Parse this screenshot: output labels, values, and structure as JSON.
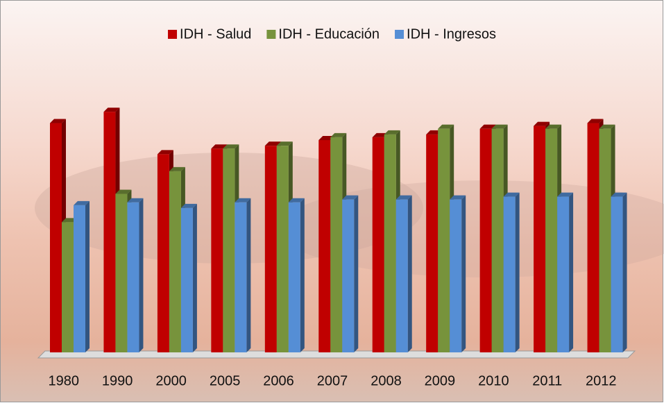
{
  "chart_data": {
    "type": "bar3d",
    "categories": [
      "1980",
      "1990",
      "2000",
      "2005",
      "2006",
      "2007",
      "2008",
      "2009",
      "2010",
      "2011",
      "2012"
    ],
    "series": [
      {
        "name": "IDH - Salud",
        "color": "#c00000",
        "values": [
          0.81,
          0.85,
          0.7,
          0.72,
          0.73,
          0.75,
          0.76,
          0.77,
          0.79,
          0.8,
          0.81
        ]
      },
      {
        "name": "IDH - Educación",
        "color": "#77933c",
        "values": [
          0.46,
          0.56,
          0.64,
          0.72,
          0.73,
          0.76,
          0.77,
          0.79,
          0.79,
          0.79,
          0.79
        ]
      },
      {
        "name": "IDH - Ingresos",
        "color": "#558ed5",
        "values": [
          0.52,
          0.53,
          0.51,
          0.53,
          0.53,
          0.54,
          0.54,
          0.54,
          0.55,
          0.55,
          0.55
        ]
      }
    ],
    "ylim": [
      0,
      1
    ],
    "legend": "top"
  }
}
